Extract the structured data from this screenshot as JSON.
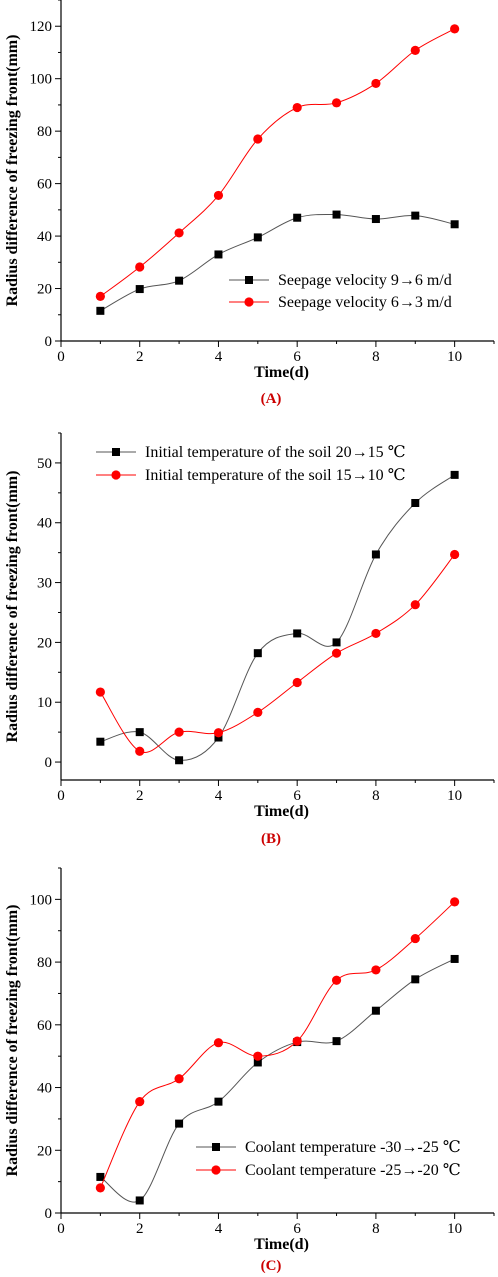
{
  "chart_data": [
    {
      "panel_label": "(A)",
      "type": "line",
      "xlabel": "Time(d)",
      "ylabel": "Radius difference of freezing front(mm)",
      "xlim": [
        0,
        11
      ],
      "ylim": [
        0,
        130
      ],
      "xticks": [
        0,
        2,
        4,
        6,
        8,
        10
      ],
      "yticks": [
        0,
        20,
        40,
        60,
        80,
        100,
        120
      ],
      "legend_position": "bottom-right",
      "x": [
        1,
        2,
        3,
        4,
        5,
        6,
        7,
        8,
        9,
        10
      ],
      "series": [
        {
          "name": "Seepage velocity 9→6 m/d",
          "marker": "square",
          "color": "#000000",
          "line_color": "#555555",
          "values": [
            11.5,
            19.8,
            23.0,
            33.0,
            39.5,
            47.0,
            48.2,
            46.5,
            47.8,
            44.5
          ]
        },
        {
          "name": "Seepage velocity 6→3 m/d",
          "marker": "circle",
          "color": "#ff0000",
          "line_color": "#ff0000",
          "values": [
            17.0,
            28.2,
            41.2,
            55.5,
            77.0,
            89.0,
            90.8,
            98.2,
            110.8,
            119.0
          ]
        }
      ]
    },
    {
      "panel_label": "(B)",
      "type": "line",
      "xlabel": "Time(d)",
      "ylabel": "Radius difference of freezing front(mm)",
      "xlim": [
        0,
        11
      ],
      "ylim": [
        -3,
        55
      ],
      "xticks": [
        0,
        2,
        4,
        6,
        8,
        10
      ],
      "yticks": [
        0,
        10,
        20,
        30,
        40,
        50
      ],
      "legend_position": "top-left",
      "x": [
        1,
        2,
        3,
        4,
        5,
        6,
        7,
        8,
        9,
        10
      ],
      "series": [
        {
          "name": "Initial temperature of the soil 20→15 ℃",
          "marker": "square",
          "color": "#000000",
          "line_color": "#555555",
          "values": [
            3.4,
            5.0,
            0.3,
            4.1,
            18.2,
            21.5,
            20.0,
            34.7,
            43.3,
            48.0
          ]
        },
        {
          "name": "Initial temperature of the soil 15→10 ℃",
          "marker": "circle",
          "color": "#ff0000",
          "line_color": "#ff0000",
          "values": [
            11.7,
            1.8,
            5.0,
            4.9,
            8.3,
            13.3,
            18.2,
            21.5,
            26.3,
            34.7
          ]
        }
      ]
    },
    {
      "panel_label": "(C)",
      "type": "line",
      "xlabel": "Time(d)",
      "ylabel": "Radius difference of freezing front(mm)",
      "xlim": [
        0,
        11
      ],
      "ylim": [
        0,
        110
      ],
      "xticks": [
        0,
        2,
        4,
        6,
        8,
        10
      ],
      "yticks": [
        0,
        20,
        40,
        60,
        80,
        100
      ],
      "legend_position": "bottom-right",
      "x": [
        1,
        2,
        3,
        4,
        5,
        6,
        7,
        8,
        9,
        10
      ],
      "series": [
        {
          "name": "Coolant temperature -30→-25 ℃",
          "marker": "square",
          "color": "#000000",
          "line_color": "#555555",
          "values": [
            11.5,
            4.0,
            28.5,
            35.5,
            48.0,
            54.5,
            54.8,
            64.5,
            74.5,
            81.0
          ]
        },
        {
          "name": "Coolant temperature -25→-20 ℃",
          "marker": "circle",
          "color": "#ff0000",
          "line_color": "#ff0000",
          "values": [
            8.0,
            35.5,
            42.8,
            54.3,
            50.0,
            54.8,
            74.2,
            77.5,
            87.5,
            99.2
          ]
        }
      ]
    }
  ]
}
